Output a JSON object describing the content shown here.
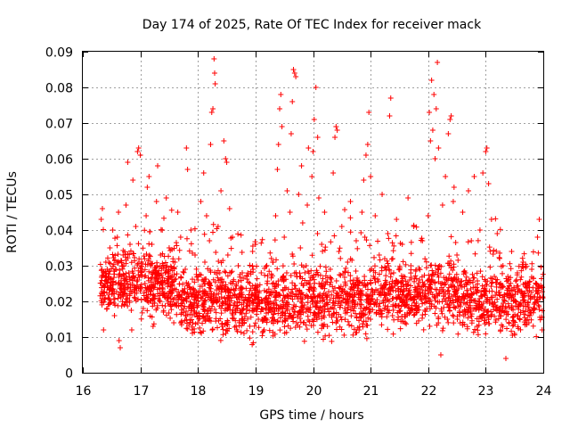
{
  "chart_data": {
    "type": "scatter",
    "title": "Day 174 of 2025, Rate Of TEC Index for receiver mack",
    "xlabel": "GPS time / hours",
    "ylabel": "ROTI / TECUs",
    "xlim": [
      16,
      24
    ],
    "ylim": [
      0,
      0.09
    ],
    "xticks": [
      16,
      17,
      18,
      19,
      20,
      21,
      22,
      23,
      24
    ],
    "xtick_labels": [
      "16",
      "17",
      "18",
      "19",
      "20",
      "21",
      "22",
      "23",
      "24"
    ],
    "yticks": [
      0,
      0.01,
      0.02,
      0.03,
      0.04,
      0.05,
      0.06,
      0.07,
      0.08,
      0.09
    ],
    "ytick_labels": [
      "0",
      "0.01",
      "0.02",
      "0.03",
      "0.04",
      "0.05",
      "0.06",
      "0.07",
      "0.08",
      "0.09"
    ],
    "grid": true,
    "marker": "plus",
    "color": "#ff0000",
    "series": [
      {
        "name": "ROTI",
        "points": [
          [
            16.32,
            0.043
          ],
          [
            16.34,
            0.046
          ],
          [
            16.36,
            0.012
          ],
          [
            16.38,
            0.024
          ],
          [
            16.4,
            0.031
          ],
          [
            16.42,
            0.018
          ],
          [
            16.45,
            0.027
          ],
          [
            16.47,
            0.035
          ],
          [
            16.5,
            0.022
          ],
          [
            16.52,
            0.04
          ],
          [
            16.55,
            0.016
          ],
          [
            16.57,
            0.029
          ],
          [
            16.6,
            0.038
          ],
          [
            16.62,
            0.045
          ],
          [
            16.63,
            0.009
          ],
          [
            16.65,
            0.007
          ],
          [
            16.67,
            0.025
          ],
          [
            16.7,
            0.033
          ],
          [
            16.72,
            0.019
          ],
          [
            16.75,
            0.047
          ],
          [
            16.78,
            0.059
          ],
          [
            16.8,
            0.028
          ],
          [
            16.82,
            0.036
          ],
          [
            16.85,
            0.012
          ],
          [
            16.87,
            0.054
          ],
          [
            16.9,
            0.023
          ],
          [
            16.92,
            0.041
          ],
          [
            16.95,
            0.062
          ],
          [
            16.97,
            0.063
          ],
          [
            17.0,
            0.061
          ],
          [
            17.02,
            0.031
          ],
          [
            17.05,
            0.018
          ],
          [
            17.07,
            0.027
          ],
          [
            17.1,
            0.044
          ],
          [
            17.12,
            0.052
          ],
          [
            17.15,
            0.055
          ],
          [
            17.17,
            0.022
          ],
          [
            17.2,
            0.036
          ],
          [
            17.22,
            0.013
          ],
          [
            17.25,
            0.029
          ],
          [
            17.28,
            0.048
          ],
          [
            17.3,
            0.058
          ],
          [
            17.33,
            0.025
          ],
          [
            17.35,
            0.033
          ],
          [
            17.38,
            0.04
          ],
          [
            17.4,
            0.017
          ],
          [
            17.43,
            0.028
          ],
          [
            17.45,
            0.049
          ],
          [
            17.48,
            0.021
          ],
          [
            17.5,
            0.035
          ],
          [
            17.55,
            0.027
          ],
          [
            17.58,
            0.014
          ],
          [
            17.6,
            0.031
          ],
          [
            17.65,
            0.045
          ],
          [
            17.68,
            0.022
          ],
          [
            17.7,
            0.038
          ],
          [
            17.75,
            0.018
          ],
          [
            17.78,
            0.029
          ],
          [
            17.8,
            0.063
          ],
          [
            17.82,
            0.057
          ],
          [
            17.85,
            0.024
          ],
          [
            17.88,
            0.04
          ],
          [
            17.9,
            0.012
          ],
          [
            17.95,
            0.033
          ],
          [
            18.0,
            0.026
          ],
          [
            18.05,
            0.048
          ],
          [
            18.08,
            0.019
          ],
          [
            18.1,
            0.056
          ],
          [
            18.12,
            0.031
          ],
          [
            18.15,
            0.044
          ],
          [
            18.18,
            0.015
          ],
          [
            18.2,
            0.037
          ],
          [
            18.22,
            0.064
          ],
          [
            18.24,
            0.073
          ],
          [
            18.26,
            0.074
          ],
          [
            18.28,
            0.088
          ],
          [
            18.29,
            0.084
          ],
          [
            18.3,
            0.081
          ],
          [
            18.32,
            0.022
          ],
          [
            18.35,
            0.041
          ],
          [
            18.38,
            0.028
          ],
          [
            18.4,
            0.051
          ],
          [
            18.42,
            0.013
          ],
          [
            18.45,
            0.065
          ],
          [
            18.48,
            0.06
          ],
          [
            18.5,
            0.059
          ],
          [
            18.52,
            0.033
          ],
          [
            18.55,
            0.046
          ],
          [
            18.58,
            0.021
          ],
          [
            18.6,
            0.038
          ],
          [
            18.65,
            0.017
          ],
          [
            18.7,
            0.03
          ],
          [
            18.75,
            0.024
          ],
          [
            18.8,
            0.011
          ],
          [
            18.85,
            0.027
          ],
          [
            18.9,
            0.019
          ],
          [
            18.95,
            0.034
          ],
          [
            19.0,
            0.036
          ],
          [
            19.02,
            0.021
          ],
          [
            19.05,
            0.015
          ],
          [
            19.1,
            0.028
          ],
          [
            19.15,
            0.012
          ],
          [
            19.2,
            0.025
          ],
          [
            19.25,
            0.018
          ],
          [
            19.3,
            0.031
          ],
          [
            19.35,
            0.044
          ],
          [
            19.38,
            0.057
          ],
          [
            19.4,
            0.064
          ],
          [
            19.42,
            0.074
          ],
          [
            19.44,
            0.078
          ],
          [
            19.46,
            0.069
          ],
          [
            19.48,
            0.023
          ],
          [
            19.5,
            0.038
          ],
          [
            19.55,
            0.051
          ],
          [
            19.58,
            0.016
          ],
          [
            19.6,
            0.045
          ],
          [
            19.62,
            0.067
          ],
          [
            19.64,
            0.076
          ],
          [
            19.66,
            0.085
          ],
          [
            19.68,
            0.084
          ],
          [
            19.7,
            0.083
          ],
          [
            19.72,
            0.027
          ],
          [
            19.75,
            0.05
          ],
          [
            19.78,
            0.035
          ],
          [
            19.8,
            0.058
          ],
          [
            19.82,
            0.042
          ],
          [
            19.85,
            0.019
          ],
          [
            19.88,
            0.03
          ],
          [
            19.9,
            0.047
          ],
          [
            19.92,
            0.063
          ],
          [
            19.95,
            0.024
          ],
          [
            19.98,
            0.055
          ],
          [
            20.0,
            0.062
          ],
          [
            20.02,
            0.071
          ],
          [
            20.05,
            0.08
          ],
          [
            20.08,
            0.066
          ],
          [
            20.1,
            0.049
          ],
          [
            20.12,
            0.022
          ],
          [
            20.15,
            0.036
          ],
          [
            20.2,
            0.045
          ],
          [
            20.25,
            0.013
          ],
          [
            20.3,
            0.029
          ],
          [
            20.35,
            0.056
          ],
          [
            20.38,
            0.066
          ],
          [
            20.4,
            0.069
          ],
          [
            20.42,
            0.068
          ],
          [
            20.45,
            0.034
          ],
          [
            20.5,
            0.041
          ],
          [
            20.55,
            0.018
          ],
          [
            20.6,
            0.031
          ],
          [
            20.65,
            0.048
          ],
          [
            20.7,
            0.025
          ],
          [
            20.75,
            0.037
          ],
          [
            20.8,
            0.012
          ],
          [
            20.85,
            0.045
          ],
          [
            20.88,
            0.054
          ],
          [
            20.9,
            0.038
          ],
          [
            20.92,
            0.061
          ],
          [
            20.95,
            0.064
          ],
          [
            20.97,
            0.073
          ],
          [
            21.0,
            0.055
          ],
          [
            21.05,
            0.027
          ],
          [
            21.08,
            0.044
          ],
          [
            21.1,
            0.019
          ],
          [
            21.15,
            0.033
          ],
          [
            21.2,
            0.05
          ],
          [
            21.25,
            0.022
          ],
          [
            21.3,
            0.039
          ],
          [
            21.33,
            0.072
          ],
          [
            21.35,
            0.077
          ],
          [
            21.38,
            0.016
          ],
          [
            21.4,
            0.028
          ],
          [
            21.45,
            0.043
          ],
          [
            21.5,
            0.021
          ],
          [
            21.55,
            0.036
          ],
          [
            21.6,
            0.014
          ],
          [
            21.65,
            0.049
          ],
          [
            21.7,
            0.03
          ],
          [
            21.75,
            0.041
          ],
          [
            21.8,
            0.018
          ],
          [
            21.85,
            0.026
          ],
          [
            21.9,
            0.037
          ],
          [
            21.95,
            0.022
          ],
          [
            22.0,
            0.044
          ],
          [
            22.02,
            0.073
          ],
          [
            22.04,
            0.065
          ],
          [
            22.06,
            0.082
          ],
          [
            22.08,
            0.068
          ],
          [
            22.1,
            0.078
          ],
          [
            22.12,
            0.06
          ],
          [
            22.14,
            0.074
          ],
          [
            22.16,
            0.087
          ],
          [
            22.18,
            0.063
          ],
          [
            22.2,
            0.03
          ],
          [
            22.22,
            0.005
          ],
          [
            22.25,
            0.047
          ],
          [
            22.3,
            0.055
          ],
          [
            22.35,
            0.067
          ],
          [
            22.38,
            0.071
          ],
          [
            22.4,
            0.072
          ],
          [
            22.45,
            0.052
          ],
          [
            22.5,
            0.033
          ],
          [
            22.55,
            0.019
          ],
          [
            22.6,
            0.045
          ],
          [
            22.65,
            0.028
          ],
          [
            22.7,
            0.051
          ],
          [
            22.75,
            0.037
          ],
          [
            22.8,
            0.055
          ],
          [
            22.85,
            0.013
          ],
          [
            22.9,
            0.04
          ],
          [
            22.95,
            0.056
          ],
          [
            23.0,
            0.062
          ],
          [
            23.02,
            0.063
          ],
          [
            23.05,
            0.053
          ],
          [
            23.1,
            0.043
          ],
          [
            23.15,
            0.027
          ],
          [
            23.2,
            0.039
          ],
          [
            23.25,
            0.016
          ],
          [
            23.3,
            0.03
          ],
          [
            23.35,
            0.004
          ],
          [
            23.4,
            0.021
          ],
          [
            23.45,
            0.034
          ],
          [
            23.5,
            0.011
          ],
          [
            23.55,
            0.028
          ],
          [
            23.6,
            0.019
          ],
          [
            23.65,
            0.031
          ],
          [
            23.7,
            0.024
          ],
          [
            23.75,
            0.014
          ],
          [
            23.8,
            0.029
          ],
          [
            23.85,
            0.018
          ],
          [
            23.9,
            0.038
          ],
          [
            23.93,
            0.043
          ],
          [
            23.95,
            0.021
          ],
          [
            23.98,
            0.012
          ]
        ]
      }
    ]
  }
}
